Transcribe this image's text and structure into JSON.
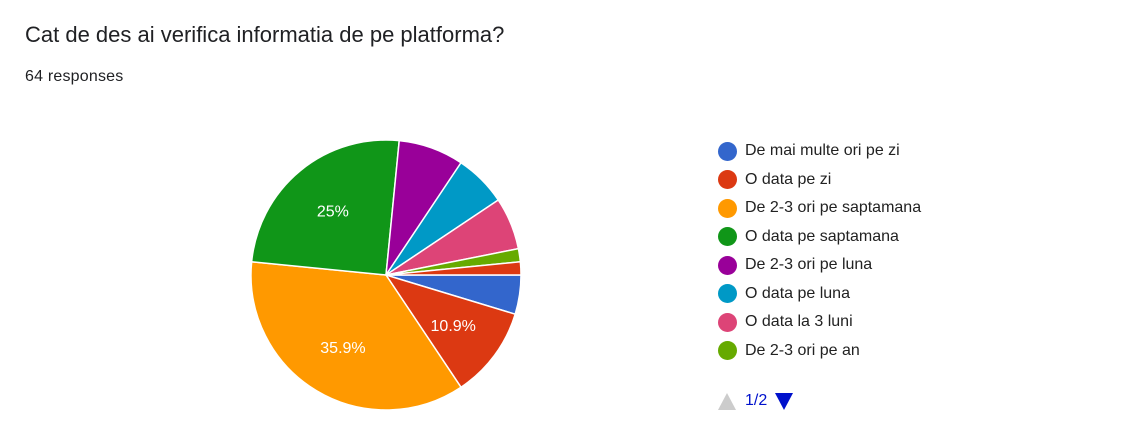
{
  "header": {
    "title": "Cat de des ai verifica informatia de pe platforma?",
    "responses": "64 responses"
  },
  "legend_pager": {
    "label": "1/2",
    "prev_icon": "triangle-up-icon",
    "next_icon": "triangle-down-icon",
    "prev_color": "#cccccc",
    "next_color": "#0011cc"
  },
  "chart_data": {
    "type": "pie",
    "title": "Cat de des ai verifica informatia de pe platforma?",
    "subtitle": "64 responses",
    "legend_position": "right",
    "total": 64,
    "slices": [
      {
        "label": "De mai multe ori pe zi",
        "count": 3,
        "percent": 4.7,
        "color": "#3366cc",
        "show_label": false,
        "value_label": ""
      },
      {
        "label": "O data pe zi",
        "count": 7,
        "percent": 10.9,
        "color": "#dc3912",
        "show_label": true,
        "value_label": "10.9%"
      },
      {
        "label": "De 2-3 ori pe saptamana",
        "count": 23,
        "percent": 35.9,
        "color": "#ff9900",
        "show_label": true,
        "value_label": "35.9%"
      },
      {
        "label": "O data pe saptamana",
        "count": 16,
        "percent": 25.0,
        "color": "#109618",
        "show_label": true,
        "value_label": "25%"
      },
      {
        "label": "De 2-3 ori pe luna",
        "count": 5,
        "percent": 7.8,
        "color": "#990099",
        "show_label": false,
        "value_label": ""
      },
      {
        "label": "O data pe luna",
        "count": 4,
        "percent": 6.3,
        "color": "#0099c6",
        "show_label": false,
        "value_label": ""
      },
      {
        "label": "O data la 3 luni",
        "count": 4,
        "percent": 6.3,
        "color": "#dd4477",
        "show_label": false,
        "value_label": ""
      },
      {
        "label": "De 2-3 ori pe an",
        "count": 1,
        "percent": 1.6,
        "color": "#66aa00",
        "show_label": false,
        "value_label": ""
      },
      {
        "label": "",
        "count": 1,
        "percent": 1.6,
        "color": "#dc3912",
        "show_label": false,
        "value_label": ""
      }
    ],
    "legend_page": "1/2"
  }
}
